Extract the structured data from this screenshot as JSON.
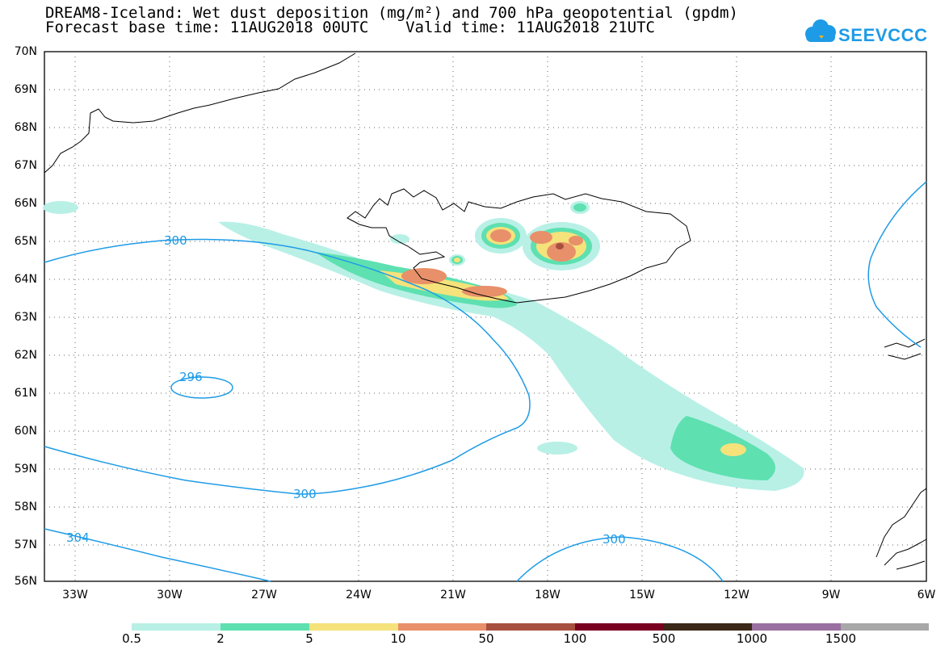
{
  "header": {
    "title_line1": "DREAM8-Iceland: Wet dust deposition (mg/m²) and 700 hPa geopotential (gpdm)",
    "title_line2": "Forecast base time: 11AUG2018 00UTC    Valid time: 11AUG2018 21UTC"
  },
  "logo": {
    "text": "SEEVCCC",
    "color": "#1e9be6"
  },
  "axes": {
    "lat_labels": [
      "70N",
      "69N",
      "68N",
      "67N",
      "66N",
      "65N",
      "64N",
      "63N",
      "62N",
      "61N",
      "60N",
      "59N",
      "58N",
      "57N",
      "56N"
    ],
    "lon_labels": [
      "33W",
      "30W",
      "27W",
      "24W",
      "21W",
      "18W",
      "15W",
      "12W",
      "9W",
      "6W"
    ]
  },
  "contours": {
    "color": "#1e9be6",
    "labels": [
      "300",
      "296",
      "300",
      "304",
      "300"
    ]
  },
  "colorbar": {
    "labels": [
      "0.5",
      "2",
      "5",
      "10",
      "50",
      "100",
      "500",
      "1000",
      "1500"
    ],
    "colors": [
      "#b8f0e6",
      "#5ee0b0",
      "#f5e27a",
      "#e8906a",
      "#a85040",
      "#7a0020",
      "#3a2818",
      "#9a70a0",
      "#a8a8a8"
    ]
  }
}
